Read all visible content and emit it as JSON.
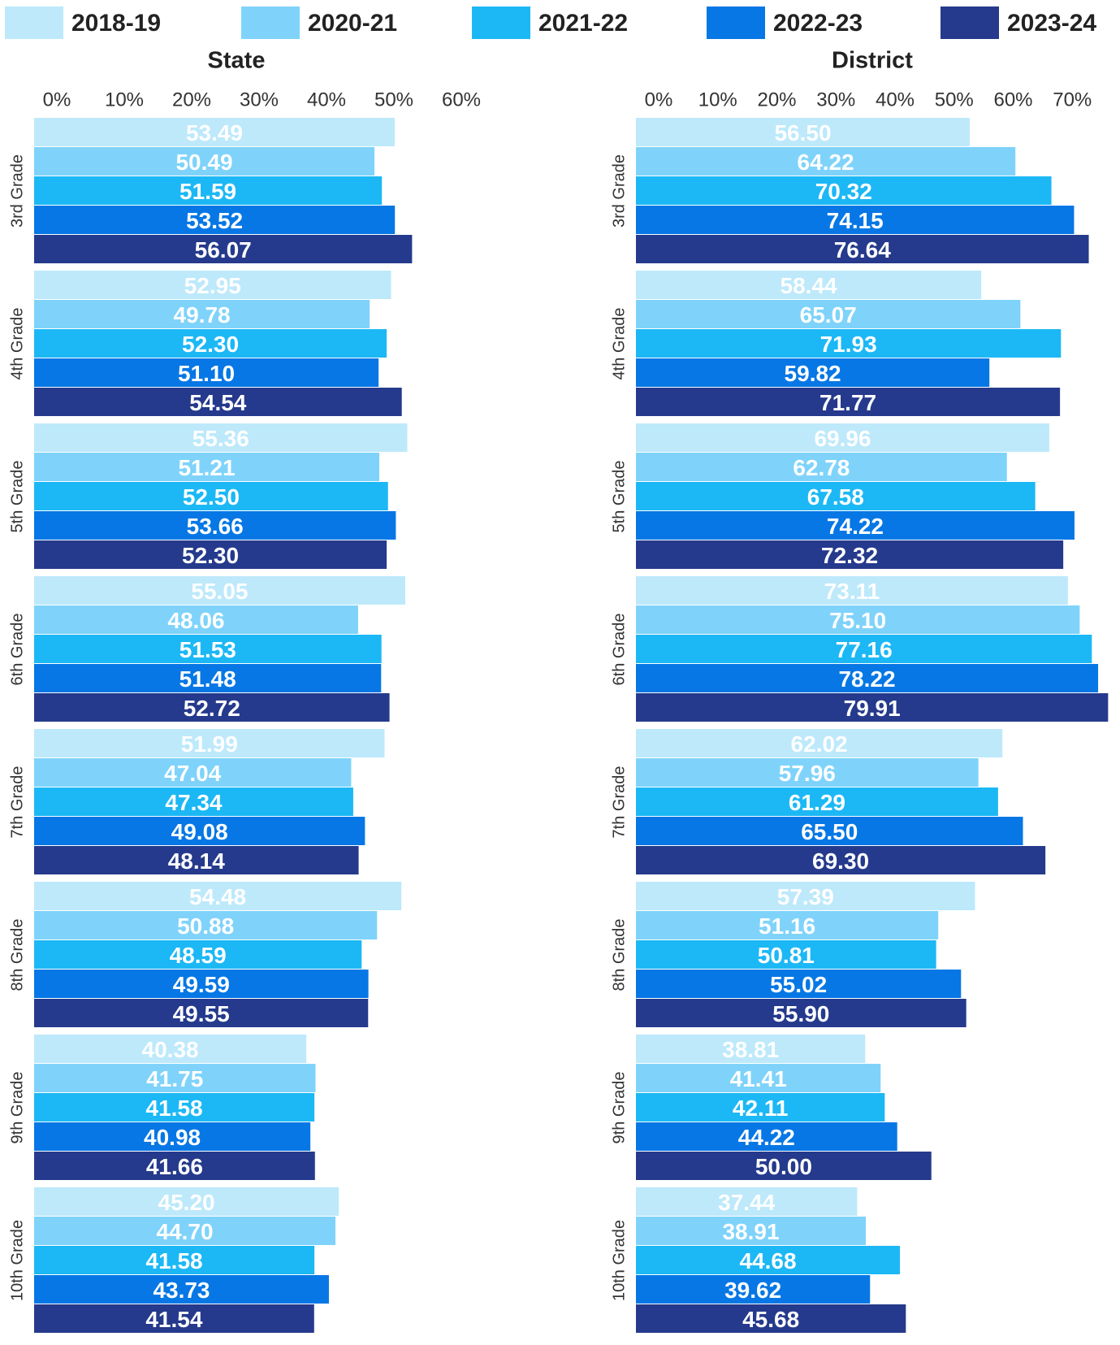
{
  "chart_data": [
    {
      "type": "barh",
      "title": "State",
      "categories": [
        "3rd Grade",
        "4th Grade",
        "5th Grade",
        "6th Grade",
        "7th Grade",
        "8th Grade",
        "9th Grade",
        "10th Grade"
      ],
      "xlim": [
        0,
        60
      ],
      "xticks": [
        {
          "value": 0,
          "label": "0%"
        },
        {
          "value": 10,
          "label": "10%"
        },
        {
          "value": 20,
          "label": "20%"
        },
        {
          "value": 30,
          "label": "30%"
        },
        {
          "value": 40,
          "label": "40%"
        },
        {
          "value": 50,
          "label": "50%"
        },
        {
          "value": 60,
          "label": "60%"
        }
      ],
      "series": [
        {
          "name": "2018-19",
          "color": "#bde9fb",
          "values": [
            53.49,
            52.95,
            55.36,
            55.05,
            51.99,
            54.48,
            40.38,
            45.2
          ],
          "value_labels": [
            "53.49",
            "52.95",
            "55.36",
            "55.05",
            "51.99",
            "54.48",
            "40.38",
            "45.20"
          ]
        },
        {
          "name": "2020-21",
          "color": "#7fd3fa",
          "values": [
            50.49,
            49.78,
            51.21,
            48.06,
            47.04,
            50.88,
            41.75,
            44.7
          ],
          "value_labels": [
            "50.49",
            "49.78",
            "51.21",
            "48.06",
            "47.04",
            "50.88",
            "41.75",
            "44.70"
          ]
        },
        {
          "name": "2021-22",
          "color": "#1cb8f5",
          "values": [
            51.59,
            52.3,
            52.5,
            51.53,
            47.34,
            48.59,
            41.58,
            41.58
          ],
          "value_labels": [
            "51.59",
            "52.30",
            "52.50",
            "51.53",
            "47.34",
            "48.59",
            "41.58",
            "41.58"
          ]
        },
        {
          "name": "2022-23",
          "color": "#0677e5",
          "values": [
            53.52,
            51.1,
            53.66,
            51.48,
            49.08,
            49.59,
            40.98,
            43.73
          ],
          "value_labels": [
            "53.52",
            "51.10",
            "53.66",
            "51.48",
            "49.08",
            "49.59",
            "40.98",
            "43.73"
          ]
        },
        {
          "name": "2023-24",
          "color": "#253a8c",
          "values": [
            56.07,
            54.54,
            52.3,
            52.72,
            48.14,
            49.55,
            41.66,
            41.54
          ],
          "value_labels": [
            "56.07",
            "54.54",
            "52.30",
            "52.72",
            "48.14",
            "49.55",
            "41.66",
            "41.54"
          ]
        }
      ]
    },
    {
      "type": "barh",
      "title": "District",
      "categories": [
        "3rd Grade",
        "4th Grade",
        "5th Grade",
        "6th Grade",
        "7th Grade",
        "8th Grade",
        "9th Grade",
        "10th Grade"
      ],
      "xlim": [
        0,
        80
      ],
      "xticks": [
        {
          "value": 0,
          "label": "0%"
        },
        {
          "value": 10,
          "label": "10%"
        },
        {
          "value": 20,
          "label": "20%"
        },
        {
          "value": 30,
          "label": "30%"
        },
        {
          "value": 40,
          "label": "40%"
        },
        {
          "value": 50,
          "label": "50%"
        },
        {
          "value": 60,
          "label": "60%"
        },
        {
          "value": 70,
          "label": "70%"
        }
      ],
      "series": [
        {
          "color": "#bde9fb",
          "values": [
            56.5,
            58.44,
            69.96,
            73.11,
            62.02,
            57.39,
            38.81,
            37.44
          ],
          "value_labels": [
            "56.50",
            "58.44",
            "69.96",
            "73.11",
            "62.02",
            "57.39",
            "38.81",
            "37.44"
          ]
        },
        {
          "color": "#7fd3fa",
          "values": [
            64.22,
            65.07,
            62.78,
            75.1,
            57.96,
            51.16,
            41.41,
            38.91
          ],
          "value_labels": [
            "64.22",
            "65.07",
            "62.78",
            "75.10",
            "57.96",
            "51.16",
            "41.41",
            "38.91"
          ]
        },
        {
          "color": "#1cb8f5",
          "values": [
            70.32,
            71.93,
            67.58,
            77.16,
            61.29,
            50.81,
            42.11,
            44.68
          ],
          "value_labels": [
            "70.32",
            "71.93",
            "67.58",
            "77.16",
            "61.29",
            "50.81",
            "42.11",
            "44.68"
          ]
        },
        {
          "color": "#0677e5",
          "values": [
            74.15,
            59.82,
            74.22,
            78.22,
            65.5,
            55.02,
            44.22,
            39.62
          ],
          "value_labels": [
            "74.15",
            "59.82",
            "74.22",
            "78.22",
            "65.50",
            "55.02",
            "44.22",
            "39.62"
          ]
        },
        {
          "color": "#253a8c",
          "values": [
            76.64,
            71.77,
            72.32,
            79.91,
            69.3,
            55.9,
            50.0,
            45.68
          ],
          "value_labels": [
            "76.64",
            "71.77",
            "72.32",
            "79.91",
            "69.30",
            "55.90",
            "50.00",
            "45.68"
          ]
        }
      ]
    }
  ]
}
